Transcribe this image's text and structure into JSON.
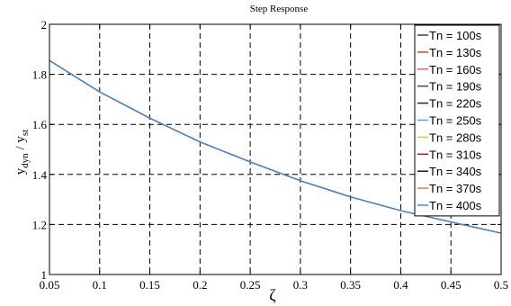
{
  "chart_data": {
    "type": "line",
    "title": "Step Response",
    "xlabel": "ζ",
    "ylabel_main": "y",
    "ylabel_sub1": "dyn",
    "ylabel_sep": " / y",
    "ylabel_sub2": "st",
    "xlim": [
      0.05,
      0.5
    ],
    "ylim": [
      1,
      2
    ],
    "xticks": [
      0.05,
      0.1,
      0.15,
      0.2,
      0.25,
      0.3,
      0.35,
      0.4,
      0.45,
      0.5
    ],
    "xtick_labels": [
      "0.05",
      "0.1",
      "0.15",
      "0.2",
      "0.25",
      "0.3",
      "0.35",
      "0.4",
      "0.45",
      "0.5"
    ],
    "yticks": [
      1,
      1.2,
      1.4,
      1.6,
      1.8,
      2
    ],
    "ytick_labels": [
      "1",
      "1.2",
      "1.4",
      "1.6",
      "1.8",
      "2"
    ],
    "grid": true,
    "legend_position": "top-right",
    "x": [
      0.05,
      0.1,
      0.15,
      0.2,
      0.25,
      0.3,
      0.35,
      0.4,
      0.45,
      0.5
    ],
    "series": [
      {
        "name": "Tn = 100s",
        "color": "#404040",
        "values": [
          1.855,
          1.73,
          1.625,
          1.53,
          1.45,
          1.375,
          1.31,
          1.255,
          1.21,
          1.165
        ]
      },
      {
        "name": "Tn = 130s",
        "color": "#e8402a",
        "values": [
          1.855,
          1.73,
          1.625,
          1.53,
          1.45,
          1.375,
          1.31,
          1.255,
          1.21,
          1.165
        ]
      },
      {
        "name": "Tn = 160s",
        "color": "#e060a8",
        "values": [
          1.855,
          1.73,
          1.625,
          1.53,
          1.45,
          1.375,
          1.31,
          1.255,
          1.21,
          1.165
        ]
      },
      {
        "name": "Tn = 190s",
        "color": "#4a3aa0",
        "values": [
          1.855,
          1.73,
          1.625,
          1.53,
          1.45,
          1.375,
          1.31,
          1.255,
          1.21,
          1.165
        ]
      },
      {
        "name": "Tn = 220s",
        "color": "#1a2a3a",
        "values": [
          1.855,
          1.73,
          1.625,
          1.53,
          1.45,
          1.375,
          1.31,
          1.255,
          1.21,
          1.165
        ]
      },
      {
        "name": "Tn = 250s",
        "color": "#40b0e0",
        "values": [
          1.855,
          1.73,
          1.625,
          1.53,
          1.45,
          1.375,
          1.31,
          1.255,
          1.21,
          1.165
        ]
      },
      {
        "name": "Tn = 280s",
        "color": "#c8d040",
        "values": [
          1.855,
          1.73,
          1.625,
          1.53,
          1.45,
          1.375,
          1.31,
          1.255,
          1.21,
          1.165
        ]
      },
      {
        "name": "Tn = 310s",
        "color": "#a02030",
        "values": [
          1.855,
          1.73,
          1.625,
          1.53,
          1.45,
          1.375,
          1.31,
          1.255,
          1.21,
          1.165
        ]
      },
      {
        "name": "Tn = 340s",
        "color": "#202020",
        "values": [
          1.855,
          1.73,
          1.625,
          1.53,
          1.45,
          1.375,
          1.31,
          1.255,
          1.21,
          1.165
        ]
      },
      {
        "name": "Tn = 370s",
        "color": "#e08030",
        "values": [
          1.855,
          1.73,
          1.625,
          1.53,
          1.45,
          1.375,
          1.31,
          1.255,
          1.21,
          1.165
        ]
      },
      {
        "name": "Tn = 400s",
        "color": "#3a8ee0",
        "values": [
          1.855,
          1.73,
          1.625,
          1.53,
          1.45,
          1.375,
          1.31,
          1.255,
          1.21,
          1.165
        ]
      }
    ]
  }
}
